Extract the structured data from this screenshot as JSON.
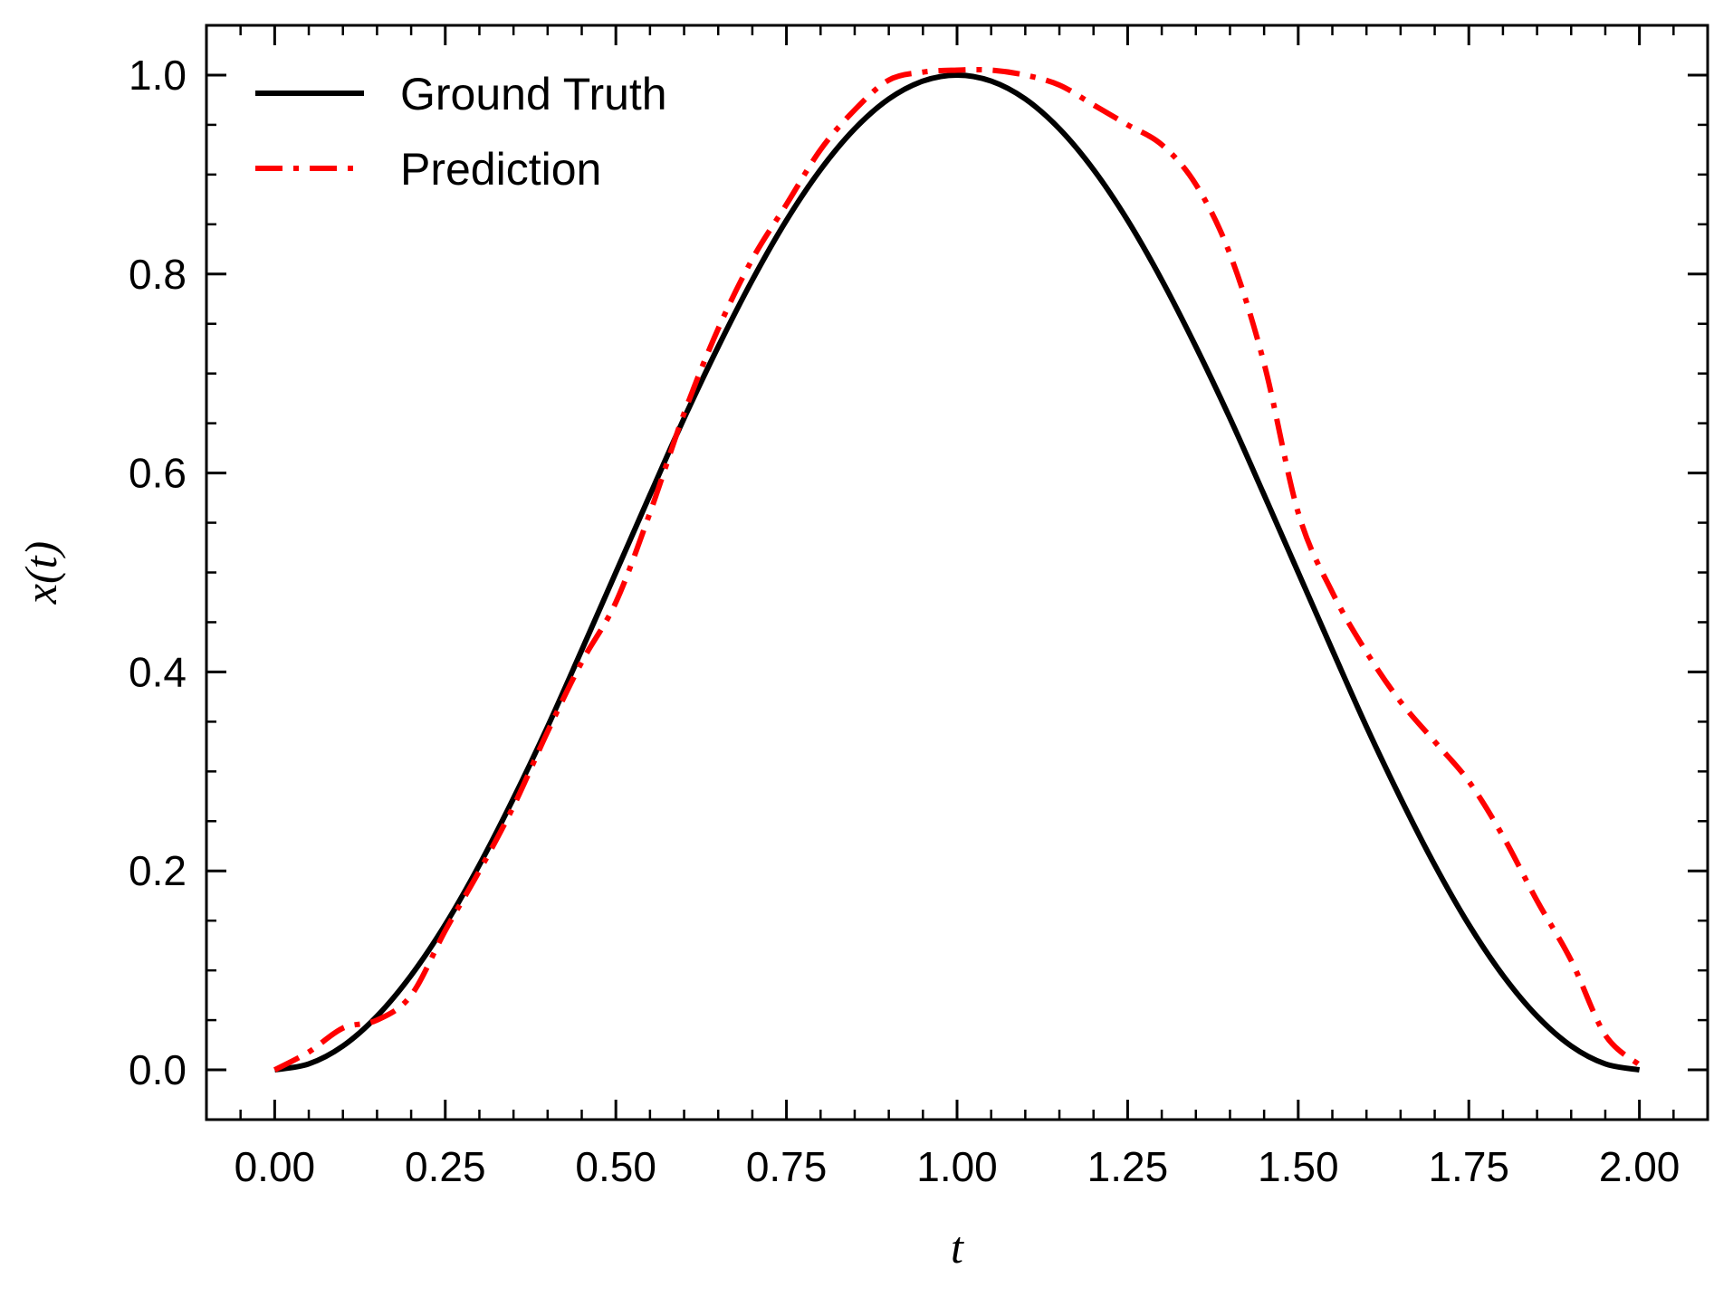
{
  "chart_data": {
    "type": "line",
    "xlabel": "t",
    "ylabel": "x(t)",
    "xlim": [
      -0.1,
      2.1
    ],
    "ylim": [
      -0.05,
      1.05
    ],
    "grid": false,
    "legend_position": "top-left",
    "x_ticks": [
      0.0,
      0.25,
      0.5,
      0.75,
      1.0,
      1.25,
      1.5,
      1.75,
      2.0
    ],
    "x_tick_labels": [
      "0.00",
      "0.25",
      "0.50",
      "0.75",
      "1.00",
      "1.25",
      "1.50",
      "1.75",
      "2.00"
    ],
    "y_ticks": [
      0.0,
      0.2,
      0.4,
      0.6,
      0.8,
      1.0
    ],
    "y_tick_labels": [
      "0.0",
      "0.2",
      "0.4",
      "0.6",
      "0.8",
      "1.0"
    ],
    "series": [
      {
        "name": "Ground Truth",
        "color": "#000000",
        "style": "solid",
        "x": [
          0.0,
          0.05,
          0.1,
          0.15,
          0.2,
          0.25,
          0.3,
          0.35,
          0.4,
          0.45,
          0.5,
          0.55,
          0.6,
          0.65,
          0.7,
          0.75,
          0.8,
          0.85,
          0.9,
          0.95,
          1.0,
          1.05,
          1.1,
          1.15,
          1.2,
          1.25,
          1.3,
          1.35,
          1.4,
          1.45,
          1.5,
          1.55,
          1.6,
          1.65,
          1.7,
          1.75,
          1.8,
          1.85,
          1.9,
          1.95,
          2.0
        ],
        "y": [
          0.0,
          0.006,
          0.024,
          0.054,
          0.095,
          0.146,
          0.206,
          0.273,
          0.345,
          0.422,
          0.5,
          0.578,
          0.655,
          0.727,
          0.794,
          0.854,
          0.905,
          0.946,
          0.976,
          0.994,
          1.0,
          0.994,
          0.976,
          0.946,
          0.905,
          0.854,
          0.794,
          0.727,
          0.655,
          0.578,
          0.5,
          0.422,
          0.345,
          0.273,
          0.206,
          0.146,
          0.095,
          0.054,
          0.024,
          0.006,
          0.0
        ]
      },
      {
        "name": "Prediction",
        "color": "#ff0000",
        "style": "dashdot",
        "x": [
          0.0,
          0.05,
          0.1,
          0.15,
          0.2,
          0.25,
          0.3,
          0.35,
          0.4,
          0.45,
          0.5,
          0.55,
          0.6,
          0.65,
          0.7,
          0.75,
          0.8,
          0.85,
          0.9,
          0.95,
          1.0,
          1.05,
          1.1,
          1.15,
          1.2,
          1.25,
          1.3,
          1.35,
          1.4,
          1.45,
          1.5,
          1.55,
          1.6,
          1.65,
          1.7,
          1.75,
          1.8,
          1.85,
          1.9,
          1.95,
          2.0
        ],
        "y": [
          0.0,
          0.018,
          0.042,
          0.05,
          0.075,
          0.14,
          0.2,
          0.265,
          0.34,
          0.41,
          0.47,
          0.56,
          0.66,
          0.745,
          0.815,
          0.87,
          0.925,
          0.965,
          0.995,
          1.003,
          1.005,
          1.005,
          1.0,
          0.99,
          0.97,
          0.95,
          0.93,
          0.89,
          0.82,
          0.71,
          0.56,
          0.48,
          0.42,
          0.37,
          0.33,
          0.29,
          0.235,
          0.17,
          0.11,
          0.035,
          0.005
        ]
      }
    ]
  }
}
